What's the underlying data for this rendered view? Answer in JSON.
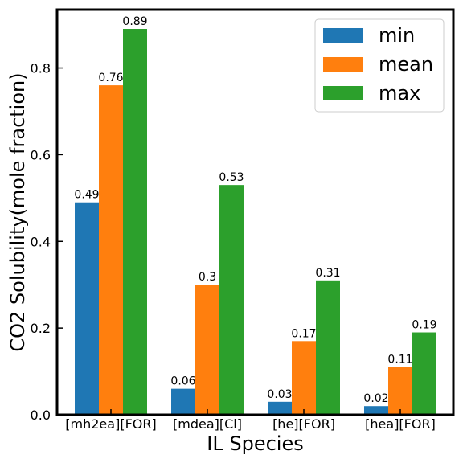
{
  "chart_data": {
    "type": "bar",
    "xlabel": "IL Species",
    "ylabel": "CO2 Solubility(mole fraction)",
    "categories": [
      "[mh2ea][FOR]",
      "[mdea][Cl]",
      "[he][FOR]",
      "[hea][FOR]"
    ],
    "series": [
      {
        "name": "min",
        "color": "#1f77b4",
        "values": [
          0.49,
          0.06,
          0.03,
          0.02
        ],
        "labels": [
          "0.49",
          "0.06",
          "0.03",
          "0.02"
        ]
      },
      {
        "name": "mean",
        "color": "#ff7f0e",
        "values": [
          0.76,
          0.3,
          0.17,
          0.11
        ],
        "labels": [
          "0.76",
          "0.3",
          "0.17",
          "0.11"
        ]
      },
      {
        "name": "max",
        "color": "#2ca02c",
        "values": [
          0.89,
          0.53,
          0.31,
          0.19
        ],
        "labels": [
          "0.89",
          "0.53",
          "0.31",
          "0.19"
        ]
      }
    ],
    "ylim": [
      0,
      0.9345
    ],
    "yticks": [
      0.0,
      0.2,
      0.4,
      0.6,
      0.8
    ],
    "ytick_labels": [
      "0.0",
      "0.2",
      "0.4",
      "0.6",
      "0.8"
    ],
    "grid": false,
    "legend_position": "top-right"
  }
}
